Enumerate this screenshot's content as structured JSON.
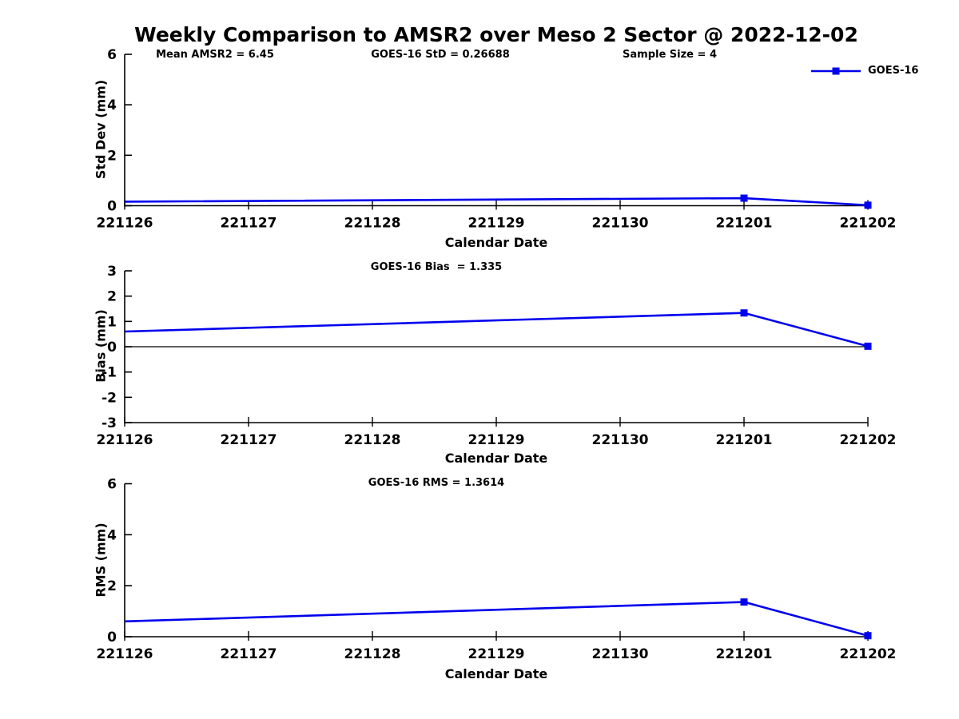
{
  "title": "Weekly Comparison to AMSR2 over Meso 2 Sector @ 2022-12-02",
  "colors": {
    "series": "#0000EE",
    "axis": "#000000",
    "text": "#000000",
    "background": "#FFFFFF"
  },
  "legend": {
    "label": "GOES-16",
    "position": "top-right"
  },
  "chart_data": [
    {
      "type": "line",
      "title": "",
      "stats": [
        "Mean AMSR2 = 6.45",
        "GOES-16 StD = 0.26688",
        "Sample Size = 4"
      ],
      "xlabel": "Calendar Date",
      "ylabel": "Std Dev (mm)",
      "ylim": [
        0,
        6
      ],
      "yticks": [
        0,
        2,
        4,
        6
      ],
      "x_categories": [
        "221126",
        "221127",
        "221128",
        "221129",
        "221130",
        "221201",
        "221202"
      ],
      "zero_reference_line": false,
      "grid": false,
      "series": [
        {
          "name": "GOES-16",
          "points": [
            {
              "x": "221126",
              "y": 0.16,
              "marker": false
            },
            {
              "x": "221201",
              "y": 0.3,
              "marker": true
            },
            {
              "x": "221202",
              "y": 0.02,
              "marker": true
            }
          ]
        }
      ]
    },
    {
      "type": "line",
      "title": "GOES-16 Bias  = 1.335",
      "stats": [],
      "xlabel": "Calendar Date",
      "ylabel": "Bias (mm)",
      "ylim": [
        -3,
        3
      ],
      "yticks": [
        -3,
        -2,
        -1,
        0,
        1,
        2,
        3
      ],
      "x_categories": [
        "221126",
        "221127",
        "221128",
        "221129",
        "221130",
        "221201",
        "221202"
      ],
      "zero_reference_line": true,
      "grid": false,
      "series": [
        {
          "name": "GOES-16",
          "points": [
            {
              "x": "221126",
              "y": 0.6,
              "marker": false
            },
            {
              "x": "221201",
              "y": 1.335,
              "marker": true
            },
            {
              "x": "221202",
              "y": 0.02,
              "marker": true
            }
          ]
        }
      ]
    },
    {
      "type": "line",
      "title": "GOES-16 RMS = 1.3614",
      "stats": [],
      "xlabel": "Calendar Date",
      "ylabel": "RMS (mm)",
      "ylim": [
        0,
        6
      ],
      "yticks": [
        0,
        2,
        4,
        6
      ],
      "x_categories": [
        "221126",
        "221127",
        "221128",
        "221129",
        "221130",
        "221201",
        "221202"
      ],
      "zero_reference_line": false,
      "grid": false,
      "series": [
        {
          "name": "GOES-16",
          "points": [
            {
              "x": "221126",
              "y": 0.6,
              "marker": false
            },
            {
              "x": "221201",
              "y": 1.3614,
              "marker": true
            },
            {
              "x": "221202",
              "y": 0.04,
              "marker": true
            }
          ]
        }
      ]
    }
  ]
}
